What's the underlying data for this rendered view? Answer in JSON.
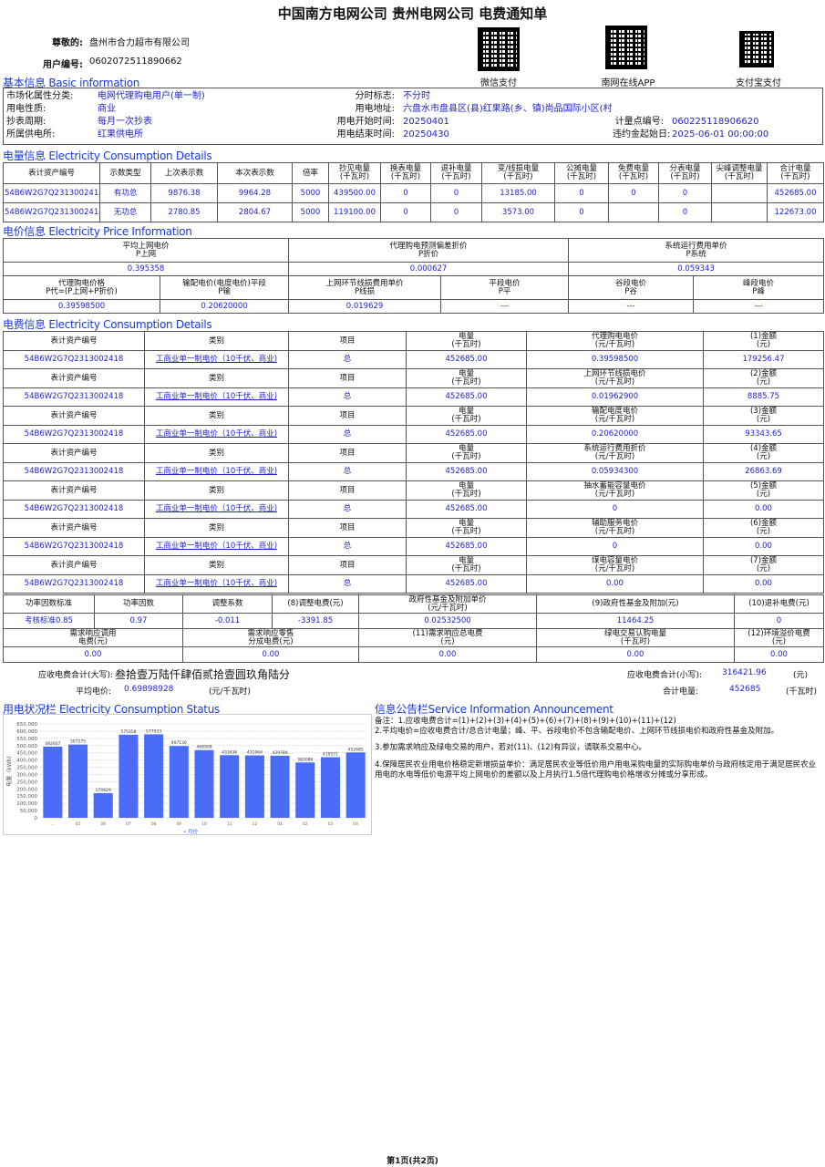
{
  "title": "中国南方电网公司 贵州电网公司 电费通知单",
  "customer": {
    "name_label": "尊敬的:",
    "name": "盘州市合力超市有限公司",
    "id_label": "用户编号:",
    "id": "0602072511890662"
  },
  "qr": [
    {
      "label": "微信支付",
      "icon": "qr-code-icon"
    },
    {
      "label": "南网在线APP",
      "icon": "qr-code-icon"
    },
    {
      "label": "支付宝支付",
      "icon": "qr-code-icon"
    }
  ],
  "basic": {
    "title": "基本信息 Basic information",
    "rows": [
      [
        "市场化属性分类:",
        "电网代理购电用户(单一制)",
        "分时标志:",
        "不分时",
        "",
        ""
      ],
      [
        "用电性质:",
        "商业",
        "用电地址:",
        "六盘水市盘县区(县)红果路(乡、镇)尚品国际小区(村)",
        "",
        ""
      ],
      [
        "抄表周期:",
        "每月一次抄表",
        "用电开始时间:",
        "20250401",
        "计量点编号:",
        "060225118906620"
      ],
      [
        "所属供电所:",
        "红果供电所",
        "用电结束时间:",
        "20250430",
        "违约金起始日:",
        "2025-06-01 00:00:00"
      ]
    ]
  },
  "consumption": {
    "title": "电量信息 Electricity Consumption Details",
    "headers": [
      "表计资产编号",
      "示数类型",
      "上次表示数",
      "本次表示数",
      "倍率",
      "抄见电量\n(千瓦时)",
      "换表电量\n(千瓦时)",
      "退补电量\n(千瓦时)",
      "变/线损电量\n(千瓦时)",
      "公摊电量\n(千瓦时)",
      "免费电量\n(千瓦时)",
      "分表电量\n(千瓦时)",
      "尖峰调整电量\n(千瓦时)",
      "合计电量\n(千瓦时)"
    ],
    "rows": [
      [
        "54B6W2G7Q2313002418",
        "有功总",
        "9876.38",
        "9964.28",
        "5000",
        "439500.00",
        "0",
        "0",
        "13185.00",
        "0",
        "0",
        "0",
        "",
        "452685.00"
      ],
      [
        "54B6W2G7Q2313002418",
        "无功总",
        "2780.85",
        "2804.67",
        "5000",
        "119100.00",
        "0",
        "0",
        "3573.00",
        "0",
        "",
        "0",
        "",
        "122673.00"
      ]
    ]
  },
  "price": {
    "title": "电价信息 Electricity Price Information",
    "top_headers": [
      "平均上网电价\nP上网",
      "代理购电预测偏差折价\nP折价",
      "系统运行费用单价\nP系统"
    ],
    "top_values": [
      "0.395358",
      "0.000627",
      "0.059343"
    ],
    "bottom_headers": [
      "代理购电价格\nP代=(P上网+P折价)",
      "输配电价(电度电价)平段\nP输",
      "上网环节线损费用单价\nP线损",
      "平段电价\nP平",
      "谷段电价\nP谷",
      "峰段电价\nP峰"
    ],
    "bottom_values": [
      "0.39598500",
      "0.20620000",
      "0.019629",
      "---",
      "---",
      "---"
    ]
  },
  "fees": {
    "title": "电费信息 Electricity Consumption Details",
    "blocks": [
      {
        "headers": [
          "表计资产编号",
          "类别",
          "项目",
          "电量\n(千瓦时)",
          "代理购电电价\n(元/千瓦时)",
          "(1)金额\n(元)"
        ],
        "values": [
          "54B6W2G7Q2313002418",
          "工商业单一制电价（10千伏、商业)",
          "总",
          "452685.00",
          "0.39598500",
          "179256.47"
        ]
      },
      {
        "headers": [
          "表计资产编号",
          "类别",
          "项目",
          "电量\n(千瓦时)",
          "上网环节线损电价\n(元/千瓦时)",
          "(2)金额\n(元)"
        ],
        "values": [
          "54B6W2G7Q2313002418",
          "工商业单一制电价（10千伏、商业)",
          "总",
          "452685.00",
          "0.01962900",
          "8885.75"
        ]
      },
      {
        "headers": [
          "表计资产编号",
          "类别",
          "项目",
          "电量\n(千瓦时)",
          "输配电度电价\n(元/千瓦时)",
          "(3)金额\n(元)"
        ],
        "values": [
          "54B6W2G7Q2313002418",
          "工商业单一制电价（10千伏、商业)",
          "总",
          "452685.00",
          "0.20620000",
          "93343.65"
        ]
      },
      {
        "headers": [
          "表计资产编号",
          "类别",
          "项目",
          "电量\n(千瓦时)",
          "系统运行费用折价\n(元/千瓦时)",
          "(4)金额\n(元)"
        ],
        "values": [
          "54B6W2G7Q2313002418",
          "工商业单一制电价（10千伏、商业)",
          "总",
          "452685.00",
          "0.05934300",
          "26863.69"
        ]
      },
      {
        "headers": [
          "表计资产编号",
          "类别",
          "项目",
          "电量\n(千瓦时)",
          "抽水蓄能容量电价\n(元/千瓦时)",
          "(5)金额\n(元)"
        ],
        "values": [
          "54B6W2G7Q2313002418",
          "工商业单一制电价（10千伏、商业)",
          "总",
          "452685.00",
          "0",
          "0.00"
        ]
      },
      {
        "headers": [
          "表计资产编号",
          "类别",
          "项目",
          "电量\n(千瓦时)",
          "辅助服务电价\n(元/千瓦时)",
          "(6)金额\n(元)"
        ],
        "values": [
          "54B6W2G7Q2313002418",
          "工商业单一制电价（10千伏、商业)",
          "总",
          "452685.00",
          "0",
          "0.00"
        ]
      },
      {
        "headers": [
          "表计资产编号",
          "类别",
          "项目",
          "电量\n(千瓦时)",
          "煤电容量电价\n(元/千瓦时)",
          "(7)金额\n(元)"
        ],
        "values": [
          "54B6W2G7Q2313002418",
          "工商业单一制电价（10千伏、商业)",
          "总",
          "452685.00",
          "0.00",
          "0.00"
        ]
      }
    ]
  },
  "adjust": {
    "headers1": [
      "功率因数标准",
      "功率因数",
      "调整系数",
      "(8)调整电费(元)",
      "政府性基金及附加单价\n(元/千瓦时)",
      "(9)政府性基金及附加(元)",
      "(10)退补电费(元)"
    ],
    "values1": [
      "考核标准0.85",
      "0.97",
      "-0.011",
      "-3391.85",
      "0.02532500",
      "11464.25",
      "0"
    ],
    "headers2": [
      "需求响应调用\n电费(元)",
      "需求响应零售\n分成电费(元)",
      "(11)需求响应总电费\n(元)",
      "绿电交易认购电量\n(千瓦时)",
      "(12)环境溢价电费\n(元)"
    ],
    "values2": [
      "0.00",
      "0.00",
      "0.00",
      "0.00",
      "0.00"
    ]
  },
  "totals": {
    "upper_label": "应收电费合计(大写):",
    "upper": "叁拾壹万陆仟肆佰贰拾壹圆玖角陆分",
    "lower_label": "应收电费合计(小写):",
    "lower": "316421.96",
    "lower_unit": "(元)",
    "avg_label": "平均电价:",
    "avg": "0.69898928",
    "avg_unit": "(元/千瓦时)",
    "kwh_label": "合计电量:",
    "kwh": "452685",
    "kwh_unit": "(千瓦时)"
  },
  "status": {
    "title": "用电状况栏 Electricity Consumption Status"
  },
  "chart_data": {
    "type": "bar",
    "ylabel": "电量（kWh)",
    "xlabel": "月份",
    "ylim": [
      0,
      650000
    ],
    "yticks": [
      "0",
      "50,000",
      "100,000",
      "150,000",
      "200,000",
      "250,000",
      "300,000",
      "350,000",
      "400,000",
      "450,000",
      "500,000",
      "550,000",
      "600,000",
      "650,000"
    ],
    "categories": [
      "...",
      "05",
      "06",
      "07",
      "08",
      "09",
      "10",
      "11",
      "12",
      "01",
      "02",
      "03",
      "04"
    ],
    "values": [
      492607,
      507275,
      170929,
      575358,
      577933,
      497130,
      468908,
      433436,
      431964,
      429789,
      383086,
      419571,
      452685
    ],
    "color": "#4a6cf7",
    "grid": true,
    "legend": "bottom"
  },
  "announce": {
    "title": "信息公告栏Service Information Announcement",
    "lines": [
      "备注：1.应收电费合计=(1)+(2)+(3)+(4)+(5)+(6)+(7)+(8)+(9)+(10)+(11)+(12)",
      "2.平均电价=应收电费合计/总合计电量；峰、平、谷段电价不包含输配电价、上网环节线损电价和政府性基金及附加。",
      "3.参加需求响应及绿电交易的用户，若对(11)、(12)有异议，请联系交易中心。",
      "4.保障居民农业用电价格稳定新增损益单价：满足居民农业等低价用户用电采购电量的实际购电单价与政府核定用于满足居民农业用电的水电等低价电源平均上网电价的差额以及上月执行1.5倍代理购电价格增收分摊或分享形成。"
    ]
  },
  "footer": "第1页(共2页)"
}
